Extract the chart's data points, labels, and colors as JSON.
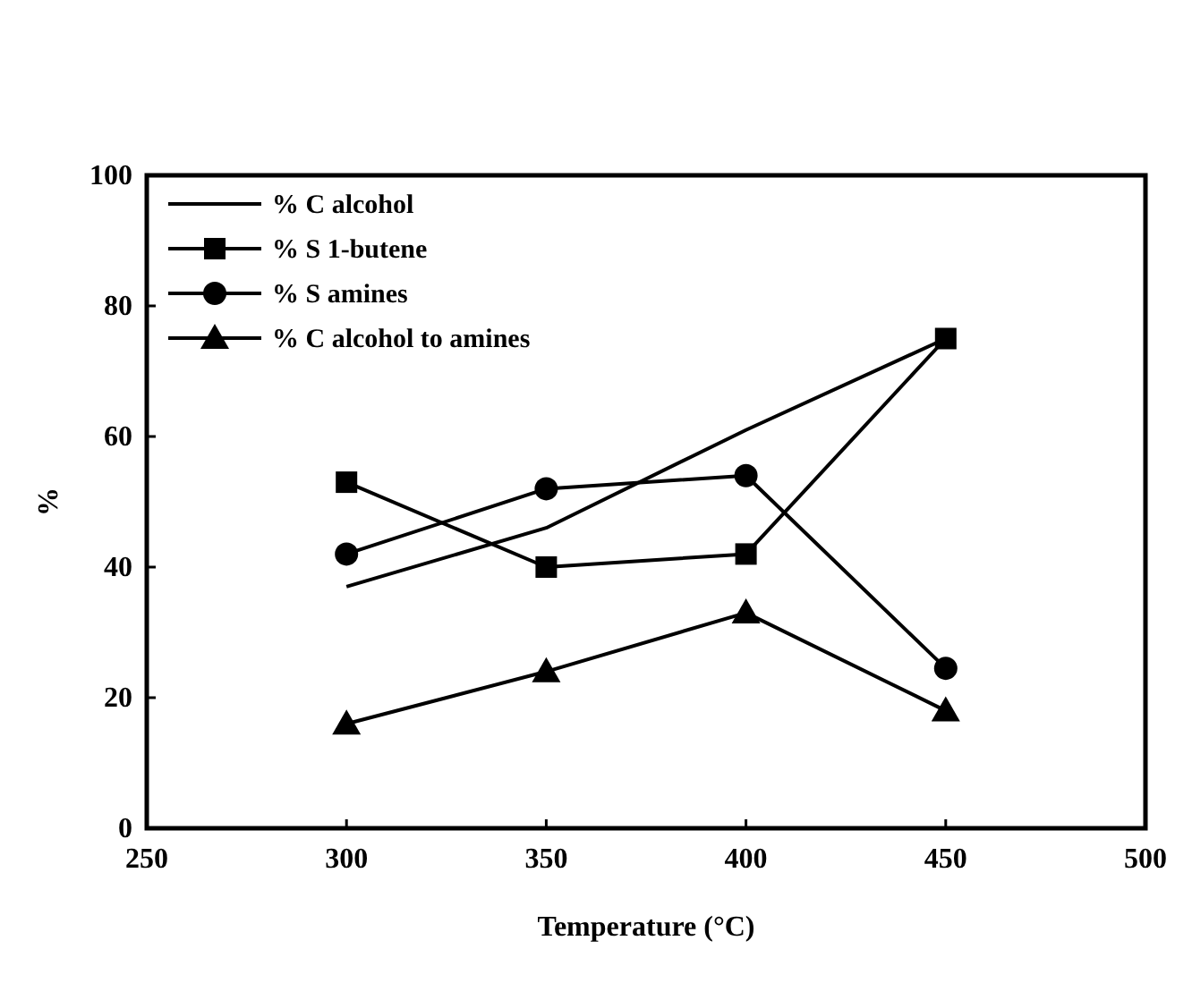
{
  "chart_data": {
    "type": "line",
    "xlabel": "Temperature (°C)",
    "ylabel": "%",
    "x": [
      300,
      350,
      400,
      450
    ],
    "xlim": [
      250,
      500
    ],
    "xticks": [
      250,
      300,
      350,
      400,
      450,
      500
    ],
    "ylim": [
      0,
      100
    ],
    "yticks": [
      0,
      20,
      40,
      60,
      80,
      100
    ],
    "legend": "top left",
    "grid": false,
    "series": [
      {
        "name": "% C alcohol",
        "color": "#000000",
        "marker": "none",
        "values": [
          37,
          46,
          61,
          75
        ]
      },
      {
        "name": "% S 1-butene",
        "color": "#000000",
        "marker": "square",
        "values": [
          53,
          40,
          42,
          75
        ]
      },
      {
        "name": "% S amines",
        "color": "#000000",
        "marker": "circle",
        "values": [
          42,
          52,
          54,
          24.5
        ]
      },
      {
        "name": "% C alcohol to amines",
        "color": "#000000",
        "marker": "triangle",
        "values": [
          16,
          24,
          33,
          18
        ]
      }
    ]
  }
}
